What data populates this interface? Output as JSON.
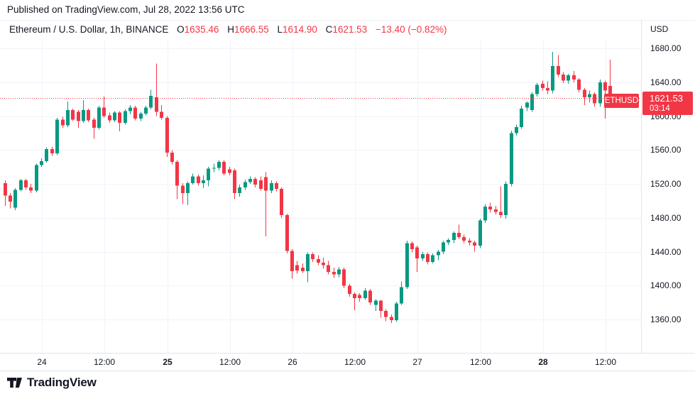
{
  "published_bar": {
    "text": "Published on TradingView.com, Jul 28, 2022 13:56 UTC"
  },
  "header": {
    "symbol_title": "Ethereum / U.S. Dollar, 1h, BINANCE",
    "ohlc": [
      {
        "label": "O",
        "value": "1635.46"
      },
      {
        "label": "H",
        "value": "1666.55"
      },
      {
        "label": "L",
        "value": "1614.90"
      },
      {
        "label": "C",
        "value": "1621.53"
      }
    ],
    "change": "−13.40 (−0.82%)"
  },
  "price_axis": {
    "currency": "USD",
    "labels": [
      "1680.00",
      "1640.00",
      "1600.00",
      "1560.00",
      "1520.00",
      "1480.00",
      "1440.00",
      "1400.00",
      "1360.00"
    ]
  },
  "last_price_badge": {
    "price": "1621.53",
    "countdown": "03:14"
  },
  "symbol_badge": {
    "text": "ETHUSD"
  },
  "time_axis": {
    "ticks": [
      {
        "i": 7,
        "label": "24",
        "bold": false
      },
      {
        "i": 19,
        "label": "12:00",
        "bold": false
      },
      {
        "i": 31,
        "label": "25",
        "bold": true
      },
      {
        "i": 43,
        "label": "12:00",
        "bold": false
      },
      {
        "i": 55,
        "label": "26",
        "bold": false
      },
      {
        "i": 67,
        "label": "12:00",
        "bold": false
      },
      {
        "i": 79,
        "label": "27",
        "bold": false
      },
      {
        "i": 91,
        "label": "12:00",
        "bold": false
      },
      {
        "i": 103,
        "label": "28",
        "bold": true
      },
      {
        "i": 115,
        "label": "12:00",
        "bold": false
      }
    ]
  },
  "logo": {
    "wordmark": "TradingView"
  },
  "colors": {
    "up": "#089981",
    "down": "#f23645",
    "grid": "#f0f3fa",
    "text": "#131722",
    "border": "#e0e3eb",
    "badge_bg": "#f23645",
    "badge_text": "#ffffff"
  },
  "chart_data": {
    "type": "candlestick",
    "title": "Ethereum / U.S. Dollar, 1h, BINANCE",
    "symbol": "ETHUSD",
    "interval": "1h",
    "last_price": 1621.53,
    "ylim": [
      1320,
      1690
    ],
    "grid": true,
    "price_gridlines": [
      1680,
      1640,
      1600,
      1560,
      1520,
      1480,
      1440,
      1400,
      1360
    ],
    "x_tick_labels": [
      "24",
      "12:00",
      "25",
      "12:00",
      "26",
      "12:00",
      "27",
      "12:00",
      "28",
      "12:00"
    ],
    "candles": [
      [
        1521,
        1524,
        1494,
        1506
      ],
      [
        1506,
        1509,
        1491,
        1499
      ],
      [
        1492,
        1515,
        1489,
        1513
      ],
      [
        1513,
        1526,
        1511,
        1524
      ],
      [
        1524,
        1526,
        1513,
        1516
      ],
      [
        1516,
        1520,
        1509,
        1512
      ],
      [
        1512,
        1544,
        1510,
        1542
      ],
      [
        1542,
        1550,
        1540,
        1547
      ],
      [
        1547,
        1563,
        1545,
        1561
      ],
      [
        1561,
        1564,
        1553,
        1556
      ],
      [
        1556,
        1598,
        1554,
        1596
      ],
      [
        1596,
        1599,
        1586,
        1589
      ],
      [
        1589,
        1617,
        1587,
        1607
      ],
      [
        1607,
        1609,
        1594,
        1596
      ],
      [
        1605,
        1607,
        1586,
        1594
      ],
      [
        1594,
        1619,
        1592,
        1607
      ],
      [
        1607,
        1609,
        1593,
        1595
      ],
      [
        1596,
        1598,
        1573,
        1586
      ],
      [
        1586,
        1612,
        1584,
        1610
      ],
      [
        1610,
        1623,
        1598,
        1600
      ],
      [
        1601,
        1604,
        1592,
        1595
      ],
      [
        1595,
        1606,
        1593,
        1604
      ],
      [
        1604,
        1606,
        1582,
        1592
      ],
      [
        1592,
        1608,
        1590,
        1606
      ],
      [
        1606,
        1613,
        1602,
        1610
      ],
      [
        1610,
        1612,
        1595,
        1597
      ],
      [
        1597,
        1605,
        1594,
        1603
      ],
      [
        1603,
        1612,
        1601,
        1610
      ],
      [
        1610,
        1631,
        1608,
        1624
      ],
      [
        1622,
        1662,
        1600,
        1605
      ],
      [
        1605,
        1613,
        1596,
        1598
      ],
      [
        1598,
        1600,
        1552,
        1557
      ],
      [
        1557,
        1560,
        1543,
        1546
      ],
      [
        1546,
        1548,
        1502,
        1518
      ],
      [
        1518,
        1521,
        1496,
        1509
      ],
      [
        1509,
        1523,
        1495,
        1521
      ],
      [
        1521,
        1532,
        1519,
        1529
      ],
      [
        1529,
        1531,
        1518,
        1521
      ],
      [
        1521,
        1530,
        1515,
        1524
      ],
      [
        1524,
        1540,
        1517,
        1538
      ],
      [
        1538,
        1544,
        1534,
        1539
      ],
      [
        1539,
        1548,
        1536,
        1546
      ],
      [
        1546,
        1548,
        1530,
        1532
      ],
      [
        1537,
        1540,
        1530,
        1533
      ],
      [
        1536,
        1538,
        1502,
        1509
      ],
      [
        1509,
        1519,
        1505,
        1516
      ],
      [
        1516,
        1525,
        1513,
        1522
      ],
      [
        1522,
        1529,
        1520,
        1526
      ],
      [
        1526,
        1528,
        1516,
        1519
      ],
      [
        1524,
        1529,
        1512,
        1514
      ],
      [
        1528,
        1534,
        1458,
        1512
      ],
      [
        1512,
        1524,
        1509,
        1521
      ],
      [
        1521,
        1523,
        1511,
        1514
      ],
      [
        1514,
        1516,
        1480,
        1483
      ],
      [
        1483,
        1485,
        1438,
        1441
      ],
      [
        1441,
        1443,
        1408,
        1417
      ],
      [
        1424,
        1429,
        1414,
        1418
      ],
      [
        1421,
        1426,
        1415,
        1417
      ],
      [
        1417,
        1439,
        1404,
        1437
      ],
      [
        1437,
        1439,
        1428,
        1431
      ],
      [
        1431,
        1436,
        1424,
        1427
      ],
      [
        1427,
        1433,
        1420,
        1424
      ],
      [
        1424,
        1429,
        1413,
        1416
      ],
      [
        1416,
        1421,
        1409,
        1413
      ],
      [
        1413,
        1422,
        1410,
        1419
      ],
      [
        1419,
        1421,
        1397,
        1400
      ],
      [
        1400,
        1402,
        1387,
        1390
      ],
      [
        1390,
        1392,
        1371,
        1385
      ],
      [
        1389,
        1391,
        1381,
        1385
      ],
      [
        1385,
        1397,
        1383,
        1394
      ],
      [
        1394,
        1396,
        1377,
        1380
      ],
      [
        1377,
        1384,
        1370,
        1382
      ],
      [
        1382,
        1383,
        1362,
        1370
      ],
      [
        1370,
        1372,
        1358,
        1363
      ],
      [
        1363,
        1366,
        1356,
        1359
      ],
      [
        1359,
        1381,
        1357,
        1379
      ],
      [
        1379,
        1405,
        1377,
        1398
      ],
      [
        1398,
        1453,
        1396,
        1450
      ],
      [
        1450,
        1452,
        1439,
        1443
      ],
      [
        1445,
        1447,
        1416,
        1432
      ],
      [
        1432,
        1440,
        1429,
        1437
      ],
      [
        1437,
        1439,
        1425,
        1428
      ],
      [
        1428,
        1438,
        1426,
        1436
      ],
      [
        1436,
        1442,
        1430,
        1440
      ],
      [
        1440,
        1453,
        1437,
        1451
      ],
      [
        1451,
        1456,
        1448,
        1454
      ],
      [
        1454,
        1464,
        1450,
        1462
      ],
      [
        1462,
        1472,
        1455,
        1457
      ],
      [
        1457,
        1460,
        1450,
        1453
      ],
      [
        1453,
        1456,
        1447,
        1451
      ],
      [
        1451,
        1453,
        1440,
        1447
      ],
      [
        1447,
        1479,
        1444,
        1477
      ],
      [
        1477,
        1496,
        1474,
        1493
      ],
      [
        1493,
        1498,
        1486,
        1490
      ],
      [
        1490,
        1494,
        1484,
        1487
      ],
      [
        1487,
        1517,
        1480,
        1483
      ],
      [
        1483,
        1523,
        1479,
        1520
      ],
      [
        1520,
        1583,
        1517,
        1580
      ],
      [
        1580,
        1590,
        1577,
        1587
      ],
      [
        1587,
        1612,
        1585,
        1609
      ],
      [
        1610,
        1617,
        1606,
        1616
      ],
      [
        1607,
        1628,
        1605,
        1626
      ],
      [
        1626,
        1639,
        1623,
        1637
      ],
      [
        1638,
        1642,
        1630,
        1633
      ],
      [
        1633,
        1641,
        1626,
        1630
      ],
      [
        1630,
        1676,
        1627,
        1659
      ],
      [
        1659,
        1672,
        1646,
        1649
      ],
      [
        1649,
        1652,
        1639,
        1642
      ],
      [
        1642,
        1650,
        1638,
        1648
      ],
      [
        1648,
        1653,
        1640,
        1643
      ],
      [
        1643,
        1645,
        1628,
        1631
      ],
      [
        1631,
        1633,
        1613,
        1622
      ],
      [
        1622,
        1630,
        1616,
        1626
      ],
      [
        1626,
        1628,
        1611,
        1615
      ],
      [
        1615,
        1643,
        1611,
        1640
      ],
      [
        1640,
        1642,
        1597,
        1630
      ],
      [
        1635.46,
        1666.55,
        1614.9,
        1621.53
      ]
    ]
  }
}
